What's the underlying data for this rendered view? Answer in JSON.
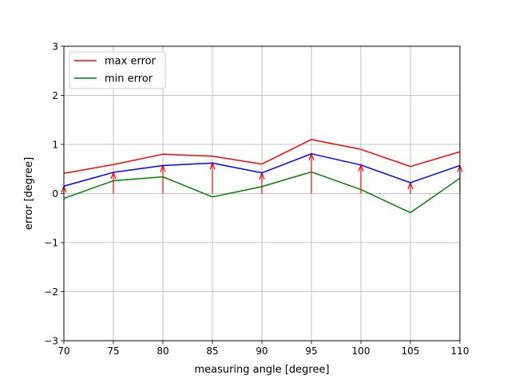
{
  "chart_data": {
    "type": "line",
    "title": "",
    "xlabel": "measuring angle [degree]",
    "ylabel": "error [degree]",
    "xlim": [
      70,
      110
    ],
    "ylim": [
      -3,
      3
    ],
    "xticks": [
      70,
      75,
      80,
      85,
      90,
      95,
      100,
      105,
      110
    ],
    "yticks": [
      -3,
      -2,
      -1,
      0,
      1,
      2,
      3
    ],
    "xtick_labels": [
      "70",
      "75",
      "80",
      "85",
      "90",
      "95",
      "100",
      "105",
      "110"
    ],
    "ytick_labels": [
      "−3",
      "−2",
      "−1",
      "0",
      "1",
      "2",
      "3"
    ],
    "grid": true,
    "legend_position": "top-left",
    "x": [
      70,
      75,
      80,
      85,
      90,
      95,
      100,
      105,
      110
    ],
    "series": [
      {
        "name": "max error",
        "color": "#ff0000",
        "in_legend": true,
        "values": [
          0.41,
          0.59,
          0.8,
          0.76,
          0.6,
          1.1,
          0.9,
          0.55,
          0.85
        ]
      },
      {
        "name": "",
        "color": "#0000ff",
        "in_legend": false,
        "values": [
          0.15,
          0.43,
          0.57,
          0.62,
          0.42,
          0.81,
          0.58,
          0.22,
          0.57
        ]
      },
      {
        "name": "min error",
        "color": "#008000",
        "in_legend": true,
        "values": [
          -0.1,
          0.26,
          0.34,
          -0.07,
          0.14,
          0.44,
          0.08,
          -0.39,
          0.31
        ]
      }
    ],
    "arrows": {
      "color": "#ff0000",
      "x": [
        70,
        75,
        80,
        85,
        90,
        95,
        100,
        105,
        110
      ],
      "y_start": [
        0,
        0,
        0,
        0,
        0,
        0,
        0,
        0,
        0
      ],
      "y_end": [
        0.15,
        0.43,
        0.57,
        0.62,
        0.42,
        0.81,
        0.58,
        0.22,
        0.57
      ]
    }
  }
}
